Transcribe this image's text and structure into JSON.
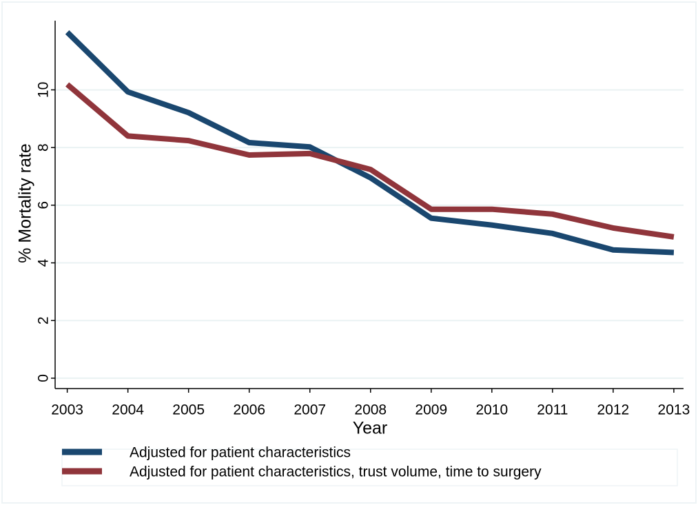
{
  "chart_data": {
    "type": "line",
    "y_label": "% Mortality rate",
    "x_label": "Year",
    "x": [
      2003,
      2004,
      2005,
      2006,
      2007,
      2008,
      2009,
      2010,
      2011,
      2012,
      2013
    ],
    "series": [
      {
        "name": "Adjusted for patient characteristics",
        "color": "#1a476f",
        "values": [
          12.0,
          9.93,
          9.21,
          8.17,
          8.02,
          6.95,
          5.55,
          5.31,
          5.02,
          4.45,
          4.36
        ]
      },
      {
        "name": "Adjusted for patient characteristics, trust volume, time to surgery",
        "color": "#90353b",
        "values": [
          10.19,
          8.4,
          8.24,
          7.74,
          7.79,
          7.24,
          5.86,
          5.86,
          5.69,
          5.21,
          4.9
        ]
      }
    ],
    "xlim": [
      2002.8,
      2013.16
    ],
    "ylim": [
      -0.36,
      12.4
    ],
    "xticks": [
      2003,
      2004,
      2005,
      2006,
      2007,
      2008,
      2009,
      2010,
      2011,
      2012,
      2013
    ],
    "yticks": [
      0,
      2,
      4,
      6,
      8,
      10
    ],
    "grid": true,
    "legend": "bottom"
  }
}
